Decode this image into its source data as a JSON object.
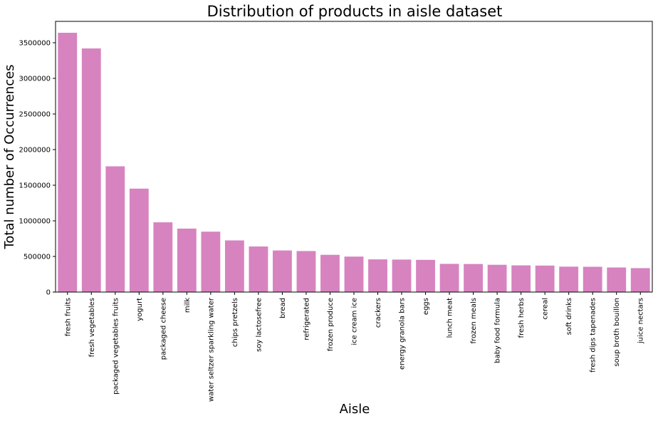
{
  "chart_data": {
    "type": "bar",
    "title": "Distribution of products in aisle dataset",
    "xlabel": "Aisle",
    "ylabel": "Total number of Occurrences",
    "bar_color": "#d783c0",
    "ylim": [
      0,
      3800000
    ],
    "yticks": [
      0,
      500000,
      1000000,
      1500000,
      2000000,
      2500000,
      3000000,
      3500000
    ],
    "ytick_labels": [
      "0",
      "500000",
      "1000000",
      "1500000",
      "2000000",
      "2500000",
      "3000000",
      "3500000"
    ],
    "categories": [
      "fresh fruits",
      "fresh vegetables",
      "packaged vegetables fruits",
      "yogurt",
      "packaged cheese",
      "milk",
      "water seltzer sparkling water",
      "chips pretzels",
      "soy lactosefree",
      "bread",
      "refrigerated",
      "frozen produce",
      "ice cream ice",
      "crackers",
      "energy granola bars",
      "eggs",
      "lunch meat",
      "frozen meals",
      "baby food formula",
      "fresh herbs",
      "cereal",
      "soft drinks",
      "fresh dips tapenades",
      "soup broth bouillon",
      "juice nectars"
    ],
    "values": [
      3640000,
      3420000,
      1765000,
      1452000,
      979000,
      891000,
      848000,
      725000,
      640000,
      584000,
      576000,
      523000,
      498000,
      459000,
      456000,
      452000,
      396000,
      394000,
      383000,
      375000,
      372000,
      357000,
      355000,
      345000,
      336000
    ]
  }
}
